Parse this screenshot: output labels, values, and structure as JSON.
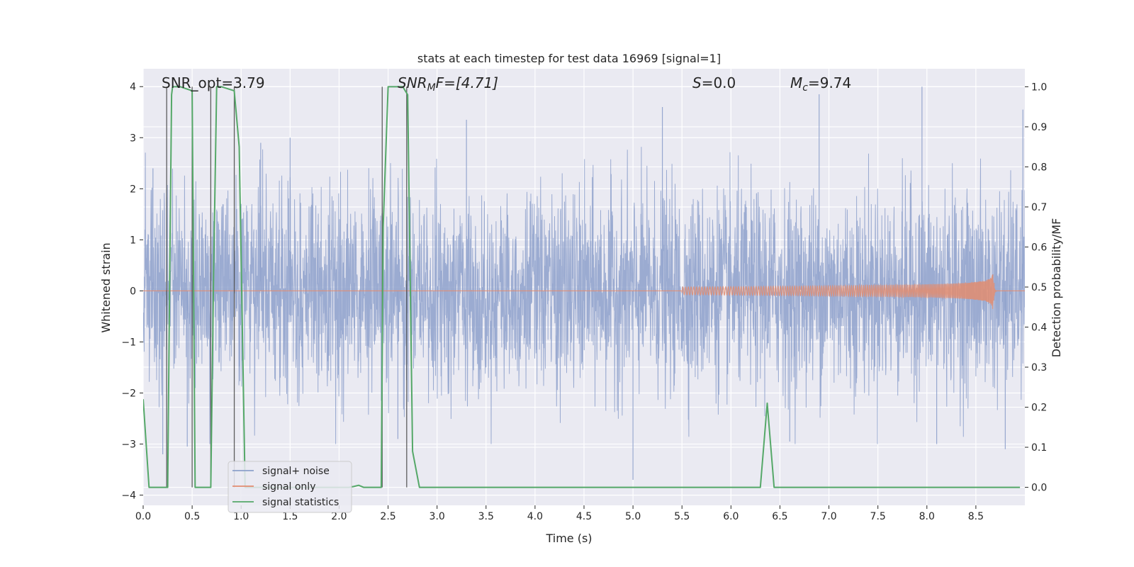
{
  "chart_data": {
    "type": "line",
    "title": "stats at each timestep for test data 16969 [signal=1]",
    "xlabel": "Time (s)",
    "ylabel_left": "Whitened strain",
    "ylabel_right": "Detection probability/MF",
    "xlim": [
      0,
      9
    ],
    "ylim_left": [
      -4.2,
      4.35
    ],
    "ylim_right": [
      -0.045,
      1.045
    ],
    "grid": true,
    "x_ticks": [
      "0.0",
      "0.5",
      "1.0",
      "1.5",
      "2.0",
      "2.5",
      "3.0",
      "3.5",
      "4.0",
      "4.5",
      "5.0",
      "5.5",
      "6.0",
      "6.5",
      "7.0",
      "7.5",
      "8.0",
      "8.5"
    ],
    "y_left_ticks": [
      "4",
      "3",
      "2",
      "1",
      "0",
      "−1",
      "−2",
      "−3",
      "−4"
    ],
    "y_right_ticks": [
      "1.0",
      "0.9",
      "0.8",
      "0.7",
      "0.6",
      "0.5",
      "0.4",
      "0.3",
      "0.2",
      "0.1",
      "0.0"
    ],
    "annotations": {
      "snr_opt": "SNR_opt=3.79",
      "snr_mf_label": "SNR",
      "snr_mf_sub": "M",
      "snr_mf_rest": "F=[4.71]",
      "s_label": "S",
      "s_rest": "=0.0",
      "mc_label": "M",
      "mc_sub": "c",
      "mc_rest": "=9.74"
    },
    "legend": {
      "placement": "lower-left",
      "entries": [
        {
          "label": "signal+ noise",
          "color": "#8da0cb"
        },
        {
          "label": "signal only",
          "color": "#e28c70"
        },
        {
          "label": "signal statistics",
          "color": "#55a868"
        }
      ]
    },
    "series": [
      {
        "name": "signal+ noise",
        "color": "#8da0cb",
        "axis": "left",
        "noise_std": 0.95,
        "peak_envelope": 2.2,
        "notable_peaks": [
          {
            "x": 0.1,
            "y": 2.4
          },
          {
            "x": 0.2,
            "y": -3.2
          },
          {
            "x": 0.45,
            "y": -3.05
          },
          {
            "x": 1.2,
            "y": 2.9
          },
          {
            "x": 1.5,
            "y": 3.0
          },
          {
            "x": 2.6,
            "y": -2.9
          },
          {
            "x": 3.3,
            "y": 3.35
          },
          {
            "x": 5.0,
            "y": -3.7
          },
          {
            "x": 5.3,
            "y": 3.6
          },
          {
            "x": 6.9,
            "y": 3.85
          },
          {
            "x": 7.95,
            "y": 4.0
          },
          {
            "x": 8.8,
            "y": -3.1
          },
          {
            "x": 8.98,
            "y": 3.55
          },
          {
            "x": 6.6,
            "y": -2.95
          },
          {
            "x": 8.1,
            "y": -3.0
          }
        ]
      },
      {
        "name": "signal only",
        "color": "#e28c70",
        "axis": "left",
        "chirp_start": 5.5,
        "merger_time": 8.68,
        "peak_amplitude": 0.45
      },
      {
        "name": "signal statistics",
        "color": "#55a868",
        "axis": "right",
        "x": [
          0,
          0.06,
          0.25,
          0.27,
          0.29,
          0.3,
          0.35,
          0.38,
          0.5,
          0.53,
          0.56,
          0.62,
          0.69,
          0.72,
          0.75,
          0.8,
          0.93,
          0.98,
          1.04,
          1.12,
          1.2,
          1.4,
          1.6,
          1.8,
          2.0,
          2.1,
          2.15,
          2.2,
          2.25,
          2.3,
          2.43,
          2.45,
          2.5,
          2.55,
          2.65,
          2.7,
          2.75,
          2.82,
          3.0,
          4.0,
          5.0,
          6.0,
          6.3,
          6.37,
          6.44,
          6.5,
          7.0,
          8.0,
          8.95
        ],
        "values": [
          0.22,
          0.0,
          0.0,
          0.5,
          0.98,
          1.0,
          1.0,
          1.0,
          0.99,
          0.0,
          0.0,
          0.0,
          0.0,
          0.55,
          1.0,
          1.0,
          0.99,
          0.85,
          0.0,
          0.0,
          0.0,
          0.0,
          0.0,
          0.0,
          0.0,
          0.0,
          0.002,
          0.005,
          0.0,
          0.0,
          0.0,
          0.65,
          1.0,
          1.0,
          1.0,
          0.98,
          0.09,
          0.0,
          0.0,
          0.0,
          0.0,
          0.0,
          0.0,
          0.21,
          0.0,
          0.0,
          0.0,
          0.0,
          0.0
        ]
      }
    ],
    "detection_markers": [
      0.24,
      0.5,
      0.69,
      0.93,
      2.44,
      2.69
    ]
  }
}
